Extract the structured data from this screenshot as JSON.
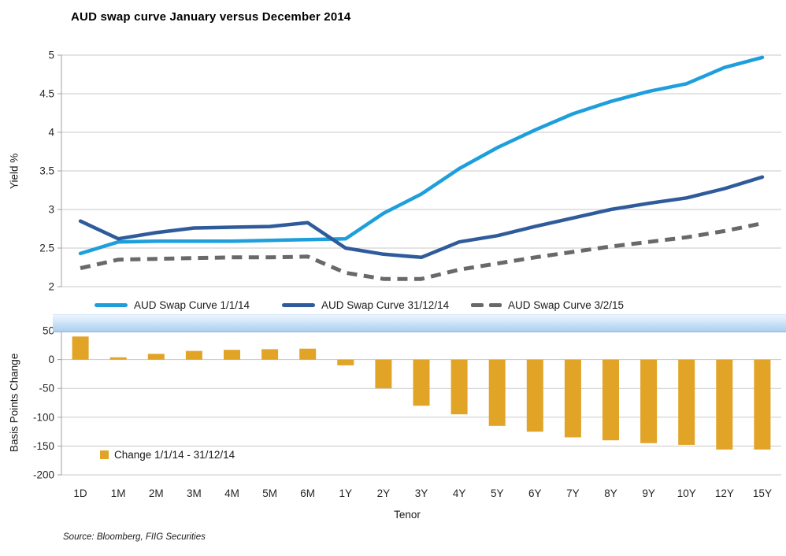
{
  "title": "AUD swap curve January versus December 2014",
  "source": "Source: Bloomberg, FIIG Securities",
  "colors": {
    "grid": "#c9c9c9",
    "axis": "#a0a0a0",
    "text": "#262626",
    "band_top": "#ecf5fe",
    "band_bottom": "#adceee",
    "band_edge": "#8fb6dd"
  },
  "categories": [
    "1D",
    "1M",
    "2M",
    "3M",
    "4M",
    "5M",
    "6M",
    "1Y",
    "2Y",
    "3Y",
    "4Y",
    "5Y",
    "6Y",
    "7Y",
    "8Y",
    "9Y",
    "10Y",
    "12Y",
    "15Y"
  ],
  "chart_data": [
    {
      "type": "line",
      "title": "AUD swap curve January versus December 2014",
      "ylabel": "Yield %",
      "xlabel": "Tenor",
      "ylim": [
        2,
        5
      ],
      "yticks": [
        "5",
        "4.5",
        "4",
        "3.5",
        "3",
        "2.5",
        "2"
      ],
      "grid": true,
      "legend_position": "bottom",
      "categories": [
        "1D",
        "1M",
        "2M",
        "3M",
        "4M",
        "5M",
        "6M",
        "1Y",
        "2Y",
        "3Y",
        "4Y",
        "5Y",
        "6Y",
        "7Y",
        "8Y",
        "9Y",
        "10Y",
        "12Y",
        "15Y"
      ],
      "series": [
        {
          "name": "AUD Swap Curve 1/1/14",
          "color": "#1e9fdc",
          "style": "solid",
          "values": [
            2.43,
            2.58,
            2.59,
            2.59,
            2.59,
            2.6,
            2.61,
            2.62,
            2.95,
            3.2,
            3.53,
            3.8,
            4.03,
            4.24,
            4.4,
            4.53,
            4.63,
            4.84,
            4.97
          ]
        },
        {
          "name": "AUD Swap Curve 31/12/14",
          "color": "#2f5b9b",
          "style": "solid",
          "values": [
            2.85,
            2.62,
            2.7,
            2.76,
            2.77,
            2.78,
            2.83,
            2.5,
            2.42,
            2.38,
            2.58,
            2.66,
            2.78,
            2.89,
            3.0,
            3.08,
            3.15,
            3.27,
            3.42
          ]
        },
        {
          "name": "AUD Swap Curve 3/2/15",
          "color": "#696969",
          "style": "dashed",
          "values": [
            2.24,
            2.35,
            2.36,
            2.37,
            2.38,
            2.38,
            2.39,
            2.18,
            2.1,
            2.1,
            2.22,
            2.3,
            2.38,
            2.45,
            2.52,
            2.58,
            2.64,
            2.72,
            2.82
          ]
        }
      ]
    },
    {
      "type": "bar",
      "ylabel": "Basis Points Change",
      "xlabel": "Tenor",
      "ylim": [
        -200,
        50
      ],
      "yticks": [
        "50",
        "0",
        "-50",
        "-100",
        "-150",
        "-200"
      ],
      "grid": true,
      "legend_position": "bottom-left-inside",
      "categories": [
        "1D",
        "1M",
        "2M",
        "3M",
        "4M",
        "5M",
        "6M",
        "1Y",
        "2Y",
        "3Y",
        "4Y",
        "5Y",
        "6Y",
        "7Y",
        "8Y",
        "9Y",
        "10Y",
        "12Y",
        "15Y"
      ],
      "series": [
        {
          "name": "Change 1/1/14 - 31/12/14",
          "color": "#e1a426",
          "values": [
            40,
            4,
            10,
            15,
            17,
            18,
            19,
            -10,
            -50,
            -80,
            -95,
            -115,
            -125,
            -135,
            -140,
            -145,
            -148,
            -156,
            -156
          ]
        }
      ]
    }
  ]
}
